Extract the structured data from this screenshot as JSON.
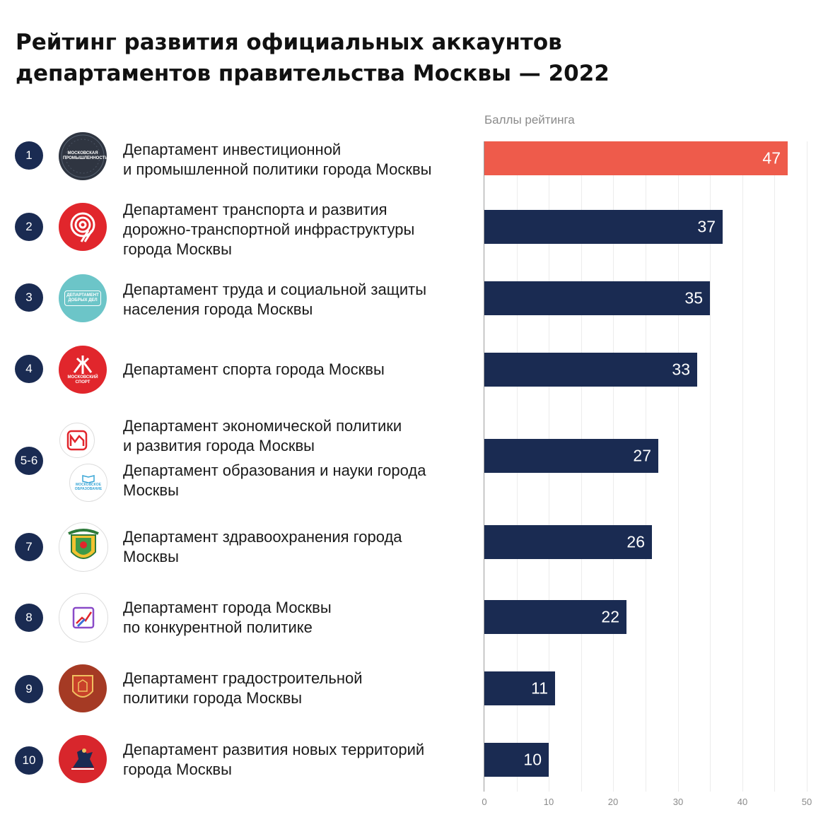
{
  "title": {
    "line1": "Рейтинг развития официальных аккаунтов",
    "line2": "департаментов правительства Москвы — 2022"
  },
  "subtitle": "Баллы рейтинга",
  "logos": {
    "mosprom": "МОСКОВСКАЯ ПРОМЫШЛЕННОСТЬ",
    "dobro": "ДЕПАРТАМЕНТ ДОБРЫХ ДЕЛ",
    "sport": "МОСКОВСКИЙ СПОРТ",
    "edu": "МОСКОВСКОЕ ОБРАЗОВАНИЕ"
  },
  "rows": [
    {
      "rank": "1",
      "logo": "mosprom-logo",
      "lines": [
        "Департамент инвестиционной",
        "и промышленной политики города Москвы"
      ]
    },
    {
      "rank": "2",
      "logo": "transport-logo",
      "lines": [
        "Департамент транспорта и развития",
        "дорожно-транспортной инфраструктуры",
        "города Москвы"
      ]
    },
    {
      "rank": "3",
      "logo": "dobro-logo",
      "lines": [
        "Департамент труда и социальной защиты",
        "населения города Москвы"
      ]
    },
    {
      "rank": "4",
      "logo": "sport-logo",
      "lines": [
        "Департамент спорта города Москвы"
      ]
    },
    {
      "rank": "5-6",
      "logo": "economy-logo",
      "lines": [
        "Департамент экономической политики",
        "и развития города Москвы"
      ],
      "lines2": [
        "Департамент образования и науки города",
        "Москвы"
      ]
    },
    {
      "rank": "7",
      "logo": "health-logo",
      "lines": [
        "Департамент здравоохранения города",
        "Москвы"
      ]
    },
    {
      "rank": "8",
      "logo": "competition-logo",
      "lines": [
        "Департамент города Москвы",
        "по конкурентной политике"
      ]
    },
    {
      "rank": "9",
      "logo": "urban-logo",
      "lines": [
        "Департамент градостроительной",
        "политики города Москвы"
      ]
    },
    {
      "rank": "10",
      "logo": "newterr-logo",
      "lines": [
        "Департамент развития новых территорий",
        "города Москвы"
      ]
    }
  ],
  "colors": {
    "highlight": "#ee5b4b",
    "bar": "#1a2b52",
    "grid": "#ececec"
  },
  "chart_data": {
    "type": "bar",
    "orientation": "horizontal",
    "title": "Рейтинг развития официальных аккаунтов департаментов правительства Москвы — 2022",
    "xlabel": "Баллы рейтинга",
    "categories": [
      "1",
      "2",
      "3",
      "4",
      "5-6",
      "7",
      "8",
      "9",
      "10"
    ],
    "values": [
      47,
      37,
      35,
      33,
      27,
      26,
      22,
      11,
      10
    ],
    "value_labels": [
      "47",
      "37",
      "35",
      "33",
      "27",
      "26",
      "22",
      "11",
      "10"
    ],
    "xlim": [
      0,
      50
    ],
    "x_ticks": [
      "0",
      "10",
      "20",
      "30",
      "40",
      "50"
    ],
    "grid": true,
    "highlight_index": 0
  }
}
